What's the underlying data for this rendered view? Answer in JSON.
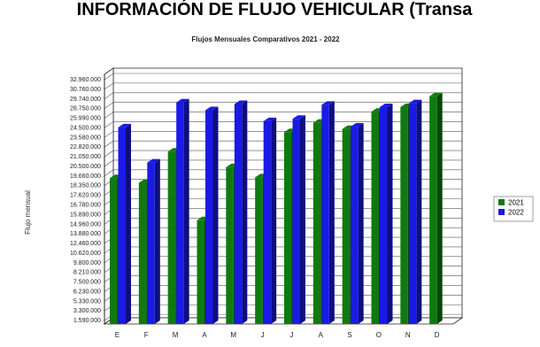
{
  "page": {
    "title": "INFORMACIÓN DE FLUJO VEHICULAR (Transa"
  },
  "chart_data": {
    "type": "bar",
    "title": "Flujos Mensuales Comparativos 2021 - 2022",
    "xlabel": "",
    "ylabel": "Flujo mensual",
    "categories": [
      "E",
      "F",
      "M",
      "A",
      "M",
      "J",
      "J",
      "A",
      "S",
      "O",
      "N",
      "D"
    ],
    "series": [
      {
        "name": "2021",
        "color": "#0f7a0f",
        "values": [
          18700000,
          18100000,
          22100000,
          13300000,
          20100000,
          18800000,
          24600000,
          25800000,
          25000000,
          27200000,
          27800000,
          29200000
        ]
      },
      {
        "name": "2022",
        "color": "#1a1ae6",
        "values": [
          25200000,
          20700000,
          28400000,
          27400000,
          28200000,
          26000000,
          26300000,
          28100000,
          25300000,
          27800000,
          28300000,
          null
        ]
      }
    ],
    "ylim": [
      0,
      32000000
    ],
    "y_ticks": [
      "32.960.000",
      "30.760.000",
      "29.740.000",
      "28.750.000",
      "25.990.000",
      "24.500.000",
      "23.580.000",
      "22.820.000",
      "21.050.000",
      "20.500.000",
      "19.660.000",
      "18.350.000",
      "17.620.000",
      "16.780.000",
      "15.890.000",
      "14.960.000",
      "13.880.000",
      "12.460.000",
      "10.620.000",
      "9.800.000",
      "8.210.000",
      "7.500.000",
      "6.230.000",
      "5.330.000",
      "3.300.000",
      "1.590.000"
    ],
    "grid": true,
    "legend_position": "right"
  }
}
